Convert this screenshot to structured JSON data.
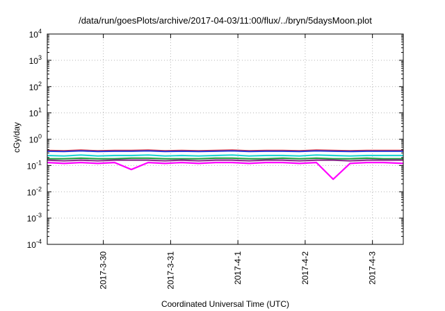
{
  "chart_data": {
    "type": "line",
    "title": "/data/run/goesPlots/archive/2017-04-03/11:00/flux/../bryn/5daysMoon.plot",
    "xlabel": "Coordinated Universal Time (UTC)",
    "ylabel": "cGy/day",
    "y_scale": "log",
    "ylim": [
      0.0001,
      10000
    ],
    "y_ticks": [
      {
        "value": 0.0001,
        "base": "10",
        "exp": "-4"
      },
      {
        "value": 0.001,
        "base": "10",
        "exp": "-3"
      },
      {
        "value": 0.01,
        "base": "10",
        "exp": "-2"
      },
      {
        "value": 0.1,
        "base": "10",
        "exp": "-1"
      },
      {
        "value": 1,
        "base": "10",
        "exp": "0"
      },
      {
        "value": 10,
        "base": "10",
        "exp": "1"
      },
      {
        "value": 100,
        "base": "10",
        "exp": "2"
      },
      {
        "value": 1000,
        "base": "10",
        "exp": "3"
      },
      {
        "value": 10000,
        "base": "10",
        "exp": "4"
      }
    ],
    "xlim": [
      "2017-03-29T04:00",
      "2017-04-03T11:00"
    ],
    "x_ticks": [
      {
        "date": "2017-03-30T00:00",
        "label": "2017-3-30"
      },
      {
        "date": "2017-03-31T00:00",
        "label": "2017-3-31"
      },
      {
        "date": "2017-04-01T00:00",
        "label": "2017-4-1"
      },
      {
        "date": "2017-04-02T00:00",
        "label": "2017-4-2"
      },
      {
        "date": "2017-04-03T00:00",
        "label": "2017-4-3"
      }
    ],
    "grid": true,
    "legend": "none",
    "x_dates": [
      "2017-03-29T04:00",
      "2017-03-29T10:00",
      "2017-03-29T16:00",
      "2017-03-29T22:00",
      "2017-03-30T04:00",
      "2017-03-30T10:00",
      "2017-03-30T16:00",
      "2017-03-30T22:00",
      "2017-03-31T04:00",
      "2017-03-31T10:00",
      "2017-03-31T16:00",
      "2017-03-31T22:00",
      "2017-04-01T04:00",
      "2017-04-01T10:00",
      "2017-04-01T16:00",
      "2017-04-01T22:00",
      "2017-04-02T04:00",
      "2017-04-02T10:00",
      "2017-04-02T16:00",
      "2017-04-02T22:00",
      "2017-04-03T04:00",
      "2017-04-03T11:00"
    ],
    "series": [
      {
        "color": "#e0202a",
        "values": [
          0.37,
          0.36,
          0.38,
          0.36,
          0.37,
          0.37,
          0.38,
          0.36,
          0.37,
          0.36,
          0.37,
          0.38,
          0.36,
          0.37,
          0.37,
          0.36,
          0.38,
          0.37,
          0.36,
          0.37,
          0.37,
          0.37
        ]
      },
      {
        "color": "#2a3cd8",
        "values": [
          0.35,
          0.34,
          0.36,
          0.34,
          0.35,
          0.35,
          0.36,
          0.34,
          0.35,
          0.34,
          0.35,
          0.36,
          0.34,
          0.35,
          0.35,
          0.34,
          0.36,
          0.35,
          0.34,
          0.35,
          0.35,
          0.35
        ]
      },
      {
        "color": "#22d4d4",
        "values": [
          0.24,
          0.23,
          0.25,
          0.23,
          0.24,
          0.24,
          0.25,
          0.23,
          0.24,
          0.23,
          0.24,
          0.25,
          0.23,
          0.24,
          0.24,
          0.23,
          0.25,
          0.24,
          0.23,
          0.24,
          0.24,
          0.24
        ]
      },
      {
        "color": "#20a040",
        "values": [
          0.18,
          0.18,
          0.19,
          0.18,
          0.18,
          0.19,
          0.19,
          0.18,
          0.18,
          0.18,
          0.19,
          0.19,
          0.18,
          0.18,
          0.19,
          0.18,
          0.19,
          0.18,
          0.18,
          0.19,
          0.18,
          0.18
        ]
      },
      {
        "color": "#8a2a8a",
        "values": [
          0.16,
          0.15,
          0.16,
          0.15,
          0.16,
          0.16,
          0.16,
          0.15,
          0.16,
          0.15,
          0.16,
          0.16,
          0.15,
          0.16,
          0.16,
          0.15,
          0.16,
          0.16,
          0.15,
          0.16,
          0.16,
          0.16
        ]
      },
      {
        "color": "#ff00ff",
        "values": [
          0.13,
          0.12,
          0.13,
          0.12,
          0.13,
          0.07,
          0.13,
          0.12,
          0.13,
          0.12,
          0.13,
          0.13,
          0.12,
          0.13,
          0.13,
          0.12,
          0.13,
          0.03,
          0.12,
          0.13,
          0.13,
          0.12
        ]
      }
    ]
  }
}
